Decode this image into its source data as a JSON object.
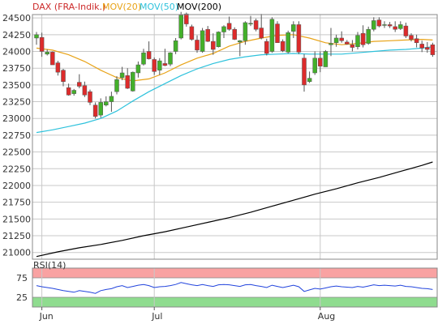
{
  "chart_data": {
    "type": "candlestick",
    "legend": [
      {
        "name": "DAX (FRA-Indik.)",
        "color": "#cc2a2a"
      },
      {
        "name": "MOV(20)",
        "color": "#e8a317"
      },
      {
        "name": "MOV(50)",
        "color": "#2ec2dc"
      },
      {
        "name": "MOV(200)",
        "color": "#000000"
      }
    ],
    "price_ylim": [
      20900,
      24550
    ],
    "price_ticks": [
      21000,
      21250,
      21500,
      21750,
      22000,
      22250,
      22500,
      22750,
      23000,
      23250,
      23500,
      23750,
      24000,
      24250,
      24500
    ],
    "x_labels": [
      {
        "label": "Jun",
        "index": 1
      },
      {
        "label": "Jul",
        "index": 22
      },
      {
        "label": "Aug",
        "index": 53
      }
    ],
    "candles": [
      [
        24200,
        24290,
        24100,
        24250
      ],
      [
        24210,
        24280,
        23920,
        24000
      ],
      [
        23960,
        24030,
        23940,
        23990
      ],
      [
        23990,
        24000,
        23800,
        23800
      ],
      [
        23830,
        23860,
        23640,
        23690
      ],
      [
        23720,
        23740,
        23480,
        23550
      ],
      [
        23460,
        23520,
        23340,
        23350
      ],
      [
        23370,
        23440,
        23340,
        23420
      ],
      [
        23540,
        23660,
        23450,
        23480
      ],
      [
        23490,
        23550,
        23320,
        23350
      ],
      [
        23400,
        23430,
        23200,
        23240
      ],
      [
        23200,
        23240,
        23000,
        23030
      ],
      [
        23050,
        23300,
        23010,
        23240
      ],
      [
        23200,
        23330,
        23180,
        23250
      ],
      [
        23250,
        23400,
        23100,
        23330
      ],
      [
        23400,
        23630,
        23360,
        23580
      ],
      [
        23610,
        23770,
        23570,
        23680
      ],
      [
        23640,
        23750,
        23440,
        23450
      ],
      [
        23410,
        23700,
        23400,
        23690
      ],
      [
        23680,
        23850,
        23610,
        23800
      ],
      [
        23810,
        24040,
        23790,
        23980
      ],
      [
        24000,
        24150,
        23880,
        23890
      ],
      [
        23880,
        23910,
        23650,
        23700
      ],
      [
        23720,
        23900,
        23650,
        23860
      ],
      [
        23820,
        24040,
        23780,
        23790
      ],
      [
        23810,
        23990,
        23780,
        23980
      ],
      [
        24000,
        24200,
        23960,
        24160
      ],
      [
        24200,
        24590,
        24180,
        24540
      ],
      [
        24560,
        24580,
        24370,
        24410
      ],
      [
        24370,
        24400,
        24160,
        24180
      ],
      [
        24170,
        24240,
        23980,
        24020
      ],
      [
        24000,
        24350,
        23980,
        24310
      ],
      [
        24330,
        24380,
        24140,
        24150
      ],
      [
        24150,
        24270,
        23950,
        24030
      ],
      [
        24070,
        24300,
        24060,
        24290
      ],
      [
        24290,
        24390,
        24200,
        24370
      ],
      [
        24420,
        24520,
        24310,
        24330
      ],
      [
        24330,
        24360,
        24170,
        24180
      ],
      [
        24140,
        24170,
        23930,
        24160
      ],
      [
        24160,
        24450,
        24100,
        24430
      ],
      [
        24420,
        24530,
        24380,
        24420
      ],
      [
        24460,
        24490,
        24300,
        24330
      ],
      [
        24350,
        24560,
        24180,
        24200
      ],
      [
        24150,
        24190,
        23940,
        23970
      ],
      [
        24000,
        24510,
        23980,
        24480
      ],
      [
        24410,
        24450,
        24130,
        24130
      ],
      [
        24150,
        24180,
        23990,
        24010
      ],
      [
        23990,
        24310,
        23970,
        24280
      ],
      [
        24300,
        24450,
        24200,
        24400
      ],
      [
        24400,
        24450,
        23960,
        23990
      ],
      [
        23900,
        23960,
        23400,
        23500
      ],
      [
        23550,
        23700,
        23530,
        23600
      ],
      [
        23680,
        24000,
        23650,
        23900
      ],
      [
        23900,
        24000,
        23690,
        23780
      ],
      [
        23770,
        24020,
        23770,
        24000
      ],
      [
        24100,
        24350,
        23930,
        24120
      ],
      [
        24130,
        24250,
        24070,
        24200
      ],
      [
        24200,
        24300,
        24130,
        24160
      ],
      [
        24140,
        24170,
        24100,
        24110
      ],
      [
        24100,
        24170,
        24000,
        24060
      ],
      [
        24070,
        24290,
        24030,
        24240
      ],
      [
        24270,
        24390,
        24060,
        24100
      ],
      [
        24120,
        24370,
        24100,
        24330
      ],
      [
        24330,
        24510,
        24300,
        24460
      ],
      [
        24470,
        24510,
        24360,
        24380
      ],
      [
        24390,
        24450,
        24350,
        24400
      ],
      [
        24400,
        24440,
        24350,
        24380
      ],
      [
        24370,
        24450,
        24290,
        24330
      ],
      [
        24340,
        24450,
        24320,
        24400
      ],
      [
        24380,
        24430,
        24200,
        24230
      ],
      [
        24240,
        24270,
        24150,
        24180
      ],
      [
        24190,
        24250,
        24060,
        24130
      ],
      [
        24110,
        24160,
        23990,
        24050
      ],
      [
        24060,
        24140,
        23980,
        24030
      ],
      [
        24100,
        24130,
        23920,
        23950
      ]
    ],
    "mov20": [
      [
        0,
        24050
      ],
      [
        3,
        24020
      ],
      [
        6,
        23950
      ],
      [
        9,
        23850
      ],
      [
        12,
        23720
      ],
      [
        15,
        23610
      ],
      [
        18,
        23560
      ],
      [
        21,
        23590
      ],
      [
        24,
        23680
      ],
      [
        27,
        23800
      ],
      [
        30,
        23900
      ],
      [
        33,
        23970
      ],
      [
        36,
        24080
      ],
      [
        39,
        24150
      ],
      [
        42,
        24200
      ],
      [
        45,
        24240
      ],
      [
        48,
        24250
      ],
      [
        51,
        24200
      ],
      [
        54,
        24130
      ],
      [
        57,
        24100
      ],
      [
        60,
        24120
      ],
      [
        63,
        24150
      ],
      [
        66,
        24160
      ],
      [
        69,
        24170
      ],
      [
        72,
        24180
      ],
      [
        74,
        24170
      ]
    ],
    "mov50": [
      [
        0,
        22790
      ],
      [
        3,
        22830
      ],
      [
        6,
        22880
      ],
      [
        9,
        22930
      ],
      [
        12,
        23000
      ],
      [
        15,
        23110
      ],
      [
        18,
        23260
      ],
      [
        21,
        23400
      ],
      [
        24,
        23520
      ],
      [
        27,
        23640
      ],
      [
        30,
        23740
      ],
      [
        33,
        23820
      ],
      [
        36,
        23880
      ],
      [
        39,
        23920
      ],
      [
        42,
        23950
      ],
      [
        45,
        23960
      ],
      [
        48,
        23970
      ],
      [
        51,
        23960
      ],
      [
        54,
        23960
      ],
      [
        57,
        23960
      ],
      [
        60,
        23980
      ],
      [
        63,
        24000
      ],
      [
        66,
        24020
      ],
      [
        69,
        24030
      ],
      [
        72,
        24050
      ],
      [
        74,
        24070
      ]
    ],
    "mov200": [
      [
        0,
        20940
      ],
      [
        4,
        21010
      ],
      [
        8,
        21070
      ],
      [
        12,
        21120
      ],
      [
        16,
        21180
      ],
      [
        20,
        21250
      ],
      [
        24,
        21310
      ],
      [
        28,
        21380
      ],
      [
        32,
        21450
      ],
      [
        36,
        21520
      ],
      [
        40,
        21600
      ],
      [
        44,
        21690
      ],
      [
        48,
        21780
      ],
      [
        52,
        21870
      ],
      [
        56,
        21950
      ],
      [
        60,
        22040
      ],
      [
        64,
        22120
      ],
      [
        68,
        22210
      ],
      [
        72,
        22300
      ],
      [
        74,
        22350
      ]
    ],
    "rsi": {
      "label": "RSI(14)",
      "ticks": [
        25,
        75
      ],
      "ylim": [
        0,
        100
      ],
      "overbought": 75,
      "oversold": 25,
      "values": [
        55,
        52,
        50,
        48,
        45,
        42,
        40,
        38,
        42,
        40,
        38,
        35,
        42,
        45,
        47,
        52,
        55,
        50,
        53,
        56,
        58,
        55,
        50,
        52,
        53,
        55,
        58,
        63,
        60,
        57,
        55,
        58,
        55,
        53,
        57,
        58,
        57,
        55,
        53,
        57,
        58,
        55,
        53,
        50,
        56,
        53,
        50,
        53,
        56,
        52,
        40,
        44,
        48,
        46,
        49,
        52,
        54,
        52,
        51,
        50,
        53,
        51,
        54,
        57,
        55,
        56,
        55,
        54,
        56,
        53,
        52,
        50,
        48,
        47,
        45
      ]
    },
    "colors": {
      "up": "#43b02a",
      "down": "#dd2b2b",
      "grid": "#c8c8c8",
      "rsi_line": "#2244dd",
      "overbought_fill": "#f9a2a2",
      "oversold_fill": "#8fdc8f"
    }
  }
}
